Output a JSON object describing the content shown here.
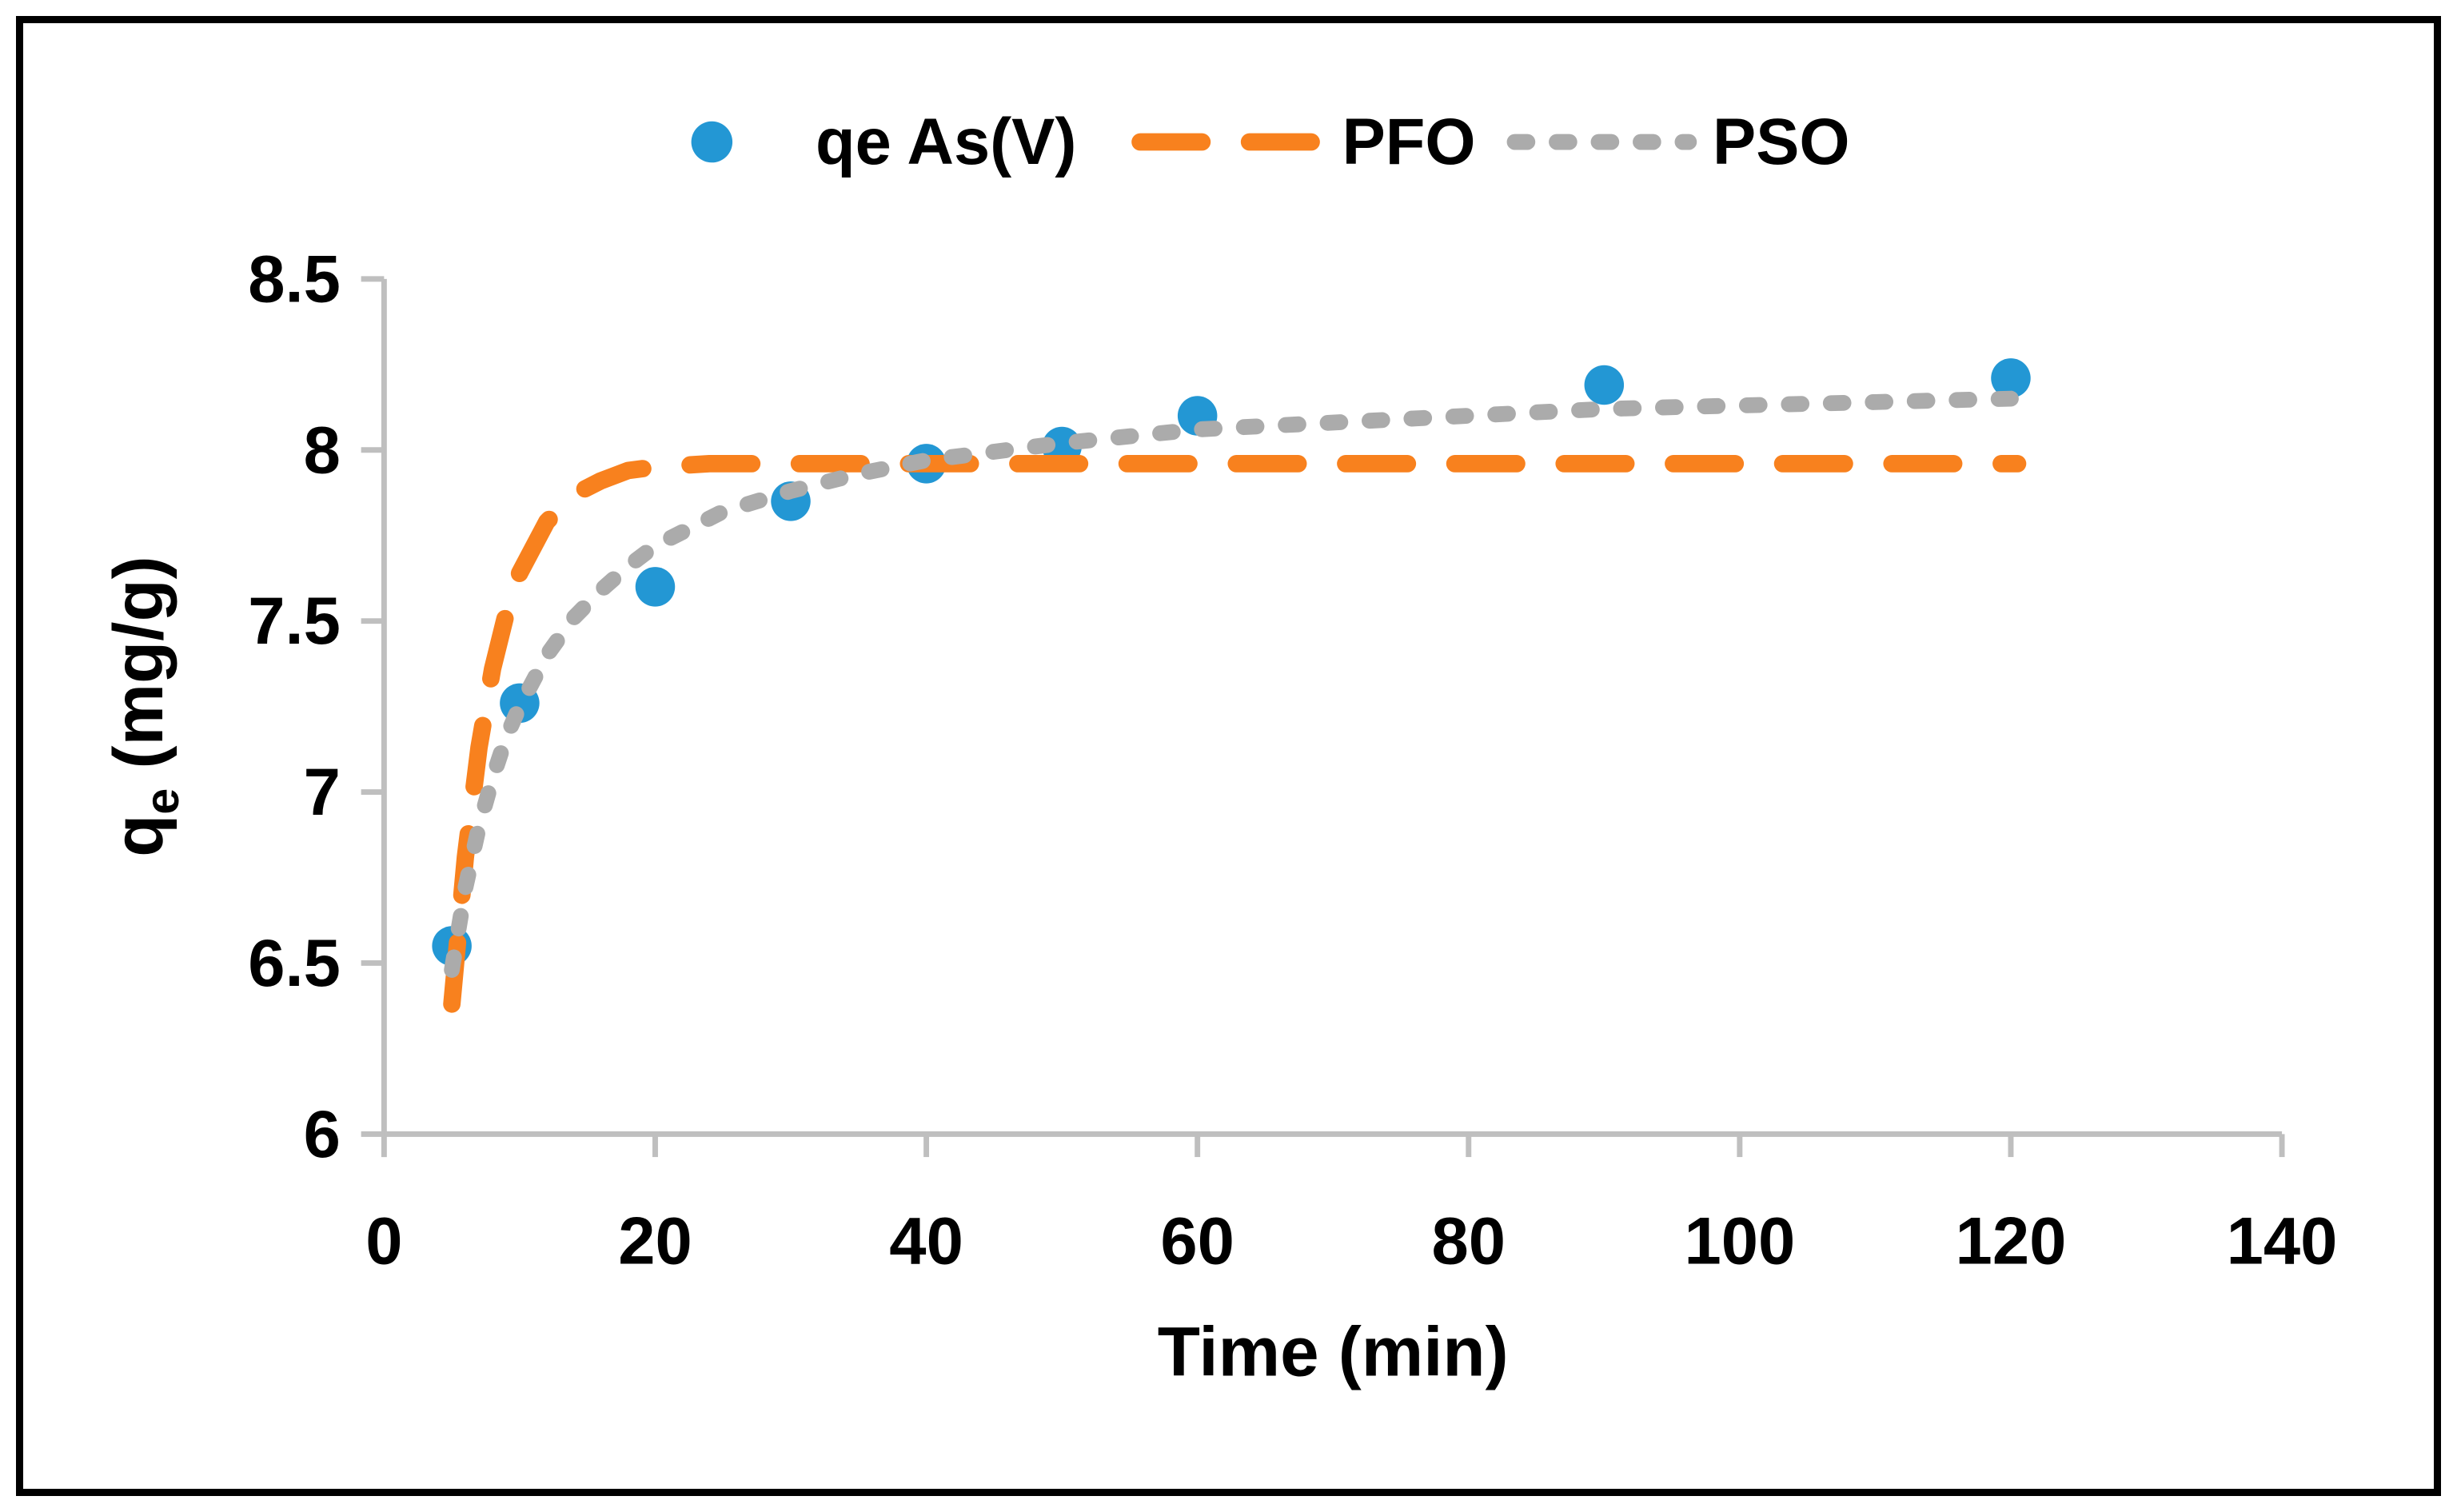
{
  "figure": {
    "background": "#FFFFFF",
    "border_color": "#000000",
    "axis_color": "#BFBFBF"
  },
  "legend": {
    "items": [
      {
        "label": "qe As(V)",
        "swatch": "circle-marker",
        "color": "#2397D4"
      },
      {
        "label": "PFO",
        "swatch": "long-dash-line",
        "color": "#F8811E"
      },
      {
        "label": "PSO",
        "swatch": "short-dash-line",
        "color": "#ABABAB"
      }
    ]
  },
  "axes": {
    "x": {
      "title": "Time (min)",
      "range": [
        0,
        140
      ],
      "tick_values": [
        0,
        20,
        40,
        60,
        80,
        100,
        120,
        140
      ],
      "tick_labels": [
        "0",
        "20",
        "40",
        "60",
        "80",
        "100",
        "120",
        "140"
      ]
    },
    "y": {
      "title_main": "q",
      "title_sub": "e",
      "title_rest": " (mg/g)",
      "range": [
        6,
        8.5
      ],
      "tick_values": [
        6,
        6.5,
        7,
        7.5,
        8,
        8.5
      ],
      "tick_labels": [
        "6",
        "6.5",
        "7",
        "7.5",
        "8",
        "8.5"
      ]
    }
  },
  "chart_data": {
    "type": "scatter",
    "title": "",
    "xlabel": "Time (min)",
    "ylabel": "qe (mg/g)",
    "xlim": [
      0,
      140
    ],
    "ylim": [
      6,
      8.5
    ],
    "grid": false,
    "legend_position": "top-center",
    "series": [
      {
        "name": "qe As(V)",
        "type": "scatter",
        "color": "#2397D4",
        "marker_radius_px": 25,
        "x": [
          5,
          10,
          20,
          30,
          40,
          50,
          60,
          90,
          120
        ],
        "y": [
          6.55,
          7.26,
          7.6,
          7.85,
          7.96,
          8.01,
          8.1,
          8.19,
          8.21
        ]
      },
      {
        "name": "PFO",
        "type": "line",
        "style": "long-dash",
        "color": "#F8811E",
        "stroke_px": 22,
        "x": [
          5,
          6,
          7,
          8,
          9,
          10,
          12,
          14,
          16,
          18,
          20,
          24,
          30,
          40,
          50,
          60,
          70,
          80,
          90,
          100,
          110,
          120.5
        ],
        "y": [
          6.38,
          6.81,
          7.13,
          7.36,
          7.52,
          7.64,
          7.79,
          7.87,
          7.91,
          7.94,
          7.95,
          7.96,
          7.96,
          7.96,
          7.96,
          7.96,
          7.96,
          7.96,
          7.96,
          7.96,
          7.96,
          7.96
        ]
      },
      {
        "name": "PSO",
        "type": "line",
        "style": "short-dash",
        "color": "#ABABAB",
        "stroke_px": 20,
        "x": [
          5,
          6,
          7,
          8,
          9,
          10,
          12,
          14,
          16,
          18,
          20,
          25,
          30,
          35,
          40,
          50,
          60,
          70,
          80,
          90,
          100,
          110,
          120
        ],
        "y": [
          6.48,
          6.72,
          6.9,
          7.04,
          7.16,
          7.25,
          7.4,
          7.51,
          7.59,
          7.66,
          7.72,
          7.82,
          7.88,
          7.93,
          7.97,
          8.02,
          8.06,
          8.08,
          8.1,
          8.12,
          8.13,
          8.14,
          8.15
        ]
      }
    ]
  }
}
